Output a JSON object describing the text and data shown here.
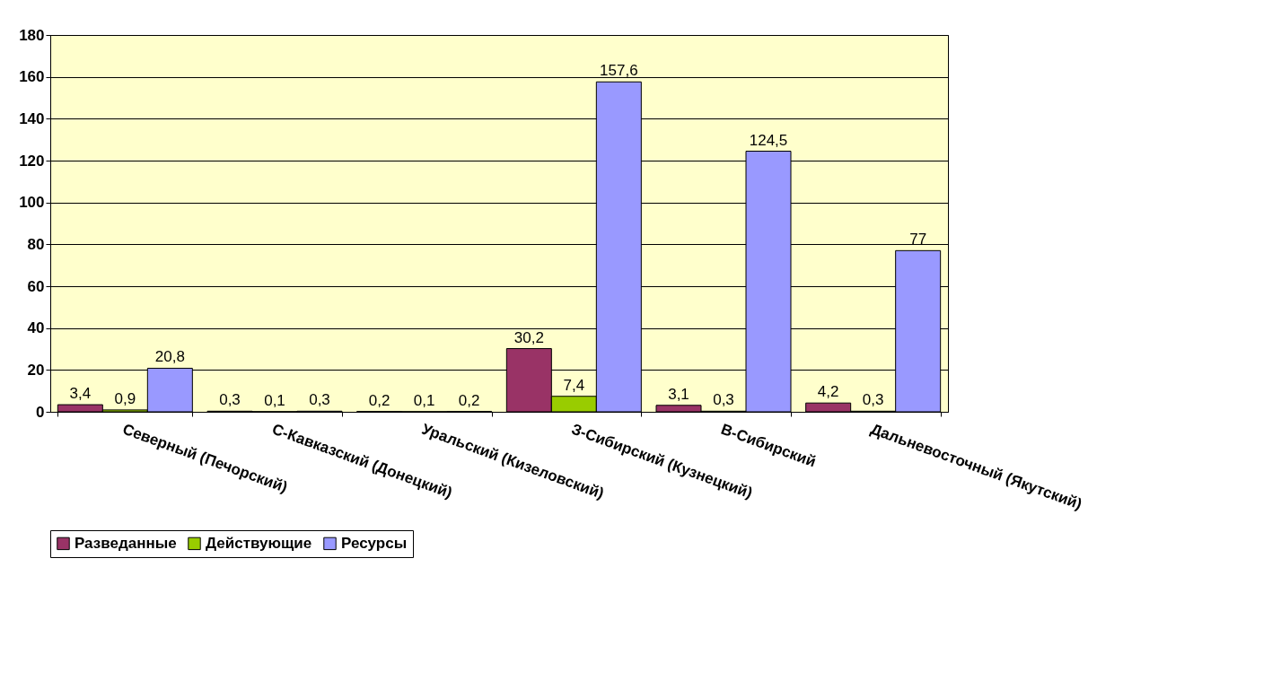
{
  "chart_data": {
    "type": "bar",
    "categories": [
      "Северный (Печорский)",
      "С-Кавказский (Донецкий)",
      "Уральский (Кизеловский)",
      "З-Сибирский (Кузнецкий)",
      "В-Сибирский",
      "Дальневосточный (Якутский)"
    ],
    "series": [
      {
        "name": "Разведанные",
        "color": "#993366",
        "values": [
          3.4,
          0.3,
          0.2,
          30.2,
          3.1,
          4.2
        ],
        "value_labels": [
          "3,4",
          "0,3",
          "0,2",
          "30,2",
          "3,1",
          "4,2"
        ]
      },
      {
        "name": "Действующие",
        "color": "#99cc00",
        "values": [
          0.9,
          0.1,
          0.1,
          7.4,
          0.3,
          0.3
        ],
        "value_labels": [
          "0,9",
          "0,1",
          "0,1",
          "7,4",
          "0,3",
          "0,3"
        ]
      },
      {
        "name": "Ресурсы",
        "color": "#9999ff",
        "values": [
          20.8,
          0.3,
          0.2,
          157.6,
          124.5,
          77
        ],
        "value_labels": [
          "20,8",
          "0,3",
          "0,2",
          "157,6",
          "124,5",
          "77"
        ]
      }
    ],
    "ylim": [
      0,
      180
    ],
    "yticks": [
      0,
      20,
      40,
      60,
      80,
      100,
      120,
      140,
      160,
      180
    ],
    "grid": "y",
    "legend": "bottom"
  }
}
